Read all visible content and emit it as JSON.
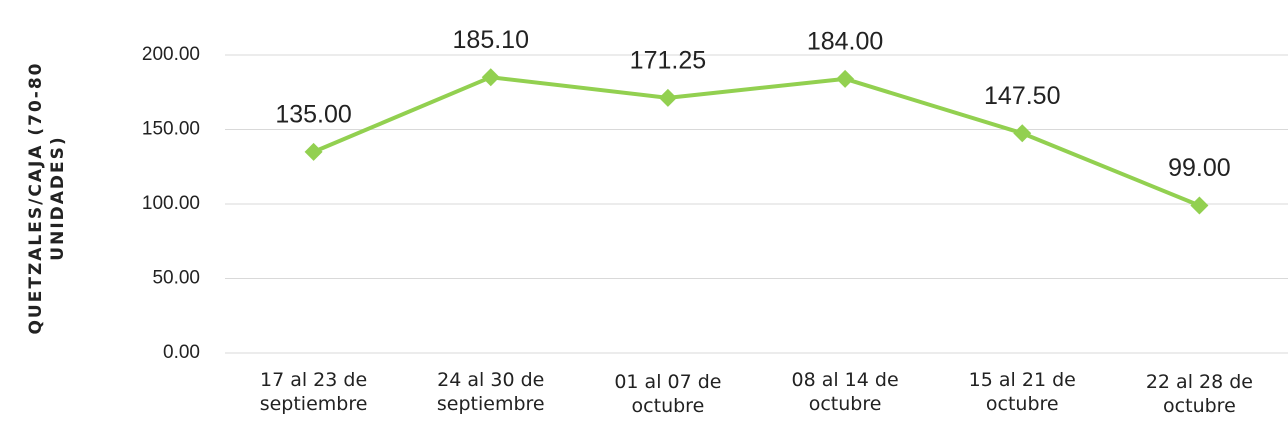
{
  "chart_data": {
    "type": "line",
    "y_label": "QUETZALES/CAJA (70-80 UNIDADES)",
    "categories": [
      "17 al 23 de septiembre",
      "24 al 30 de septiembre",
      "01 al 07 de octubre",
      "08 al 14 de octubre",
      "15 al 21 de octubre",
      "22 al 28 de octubre"
    ],
    "values": [
      135,
      185.1,
      171.25,
      184,
      147.5,
      99
    ],
    "value_labels": [
      "135.00",
      "185.10",
      "171.25",
      "184.00",
      "147.50",
      "99.00"
    ],
    "color": "#92d050",
    "ylim": [
      0,
      200
    ],
    "yticks": [
      {
        "value": 0,
        "label": "0.00"
      },
      {
        "value": 50,
        "label": "50.00"
      },
      {
        "value": 100,
        "label": "100.00"
      },
      {
        "value": 150,
        "label": "150.00"
      },
      {
        "value": 200,
        "label": "200.00"
      }
    ],
    "grid": true
  }
}
